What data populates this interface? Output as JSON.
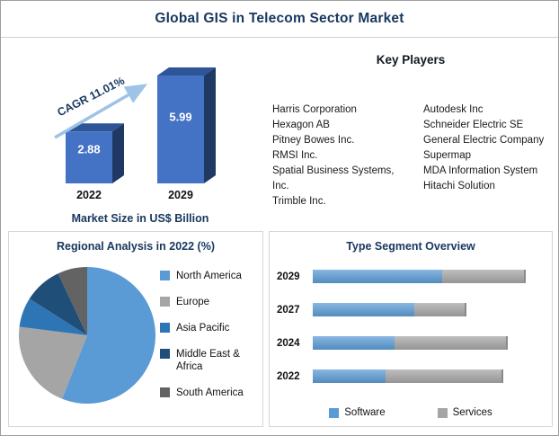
{
  "page": {
    "title": "Global GIS in Telecom Sector Market"
  },
  "key_players": {
    "heading": "Key Players",
    "column1": [
      "Harris Corporation",
      "Hexagon AB",
      "Pitney Bowes Inc.",
      "RMSI Inc.",
      "Spatial Business Systems, Inc.",
      "Trimble Inc."
    ],
    "column2": [
      "Autodesk Inc",
      "Schneider Electric SE",
      "General Electric Company",
      "Supermap",
      "MDA Information System",
      "Hitachi Solution"
    ]
  },
  "chart_data": [
    {
      "type": "bar",
      "title": "Market Size in US$ Billion",
      "categories": [
        "2022",
        "2029"
      ],
      "values": [
        2.88,
        5.99
      ],
      "ylim": [
        0,
        6.5
      ],
      "annotation": "CAGR 11.01%",
      "bar_color": "#4472C4",
      "bar_top_color": "#2E5597",
      "bar_side_color": "#1F3864",
      "arrow_color": "#9DC3E6",
      "value_label_color": "#ffffff",
      "annotation_color": "#17375E"
    },
    {
      "type": "pie",
      "title": "Regional Analysis in 2022 (%)",
      "labels": [
        "North America",
        "Europe",
        "Asia Pacific",
        "Middle East & Africa",
        "South America"
      ],
      "values": [
        56,
        21,
        7,
        9,
        7
      ],
      "colors": [
        "#5B9BD5",
        "#A5A5A5",
        "#2E75B6",
        "#1F4E79",
        "#636363"
      ],
      "legend_position": "right"
    },
    {
      "type": "bar",
      "orientation": "horizontal-stacked",
      "title": "Type Segment Overview",
      "categories": [
        "2029",
        "2027",
        "2024",
        "2022"
      ],
      "unit": "percent-of-chart-width",
      "series": [
        {
          "name": "Software",
          "color": "#5B9BD5",
          "values": [
            57,
            45,
            36,
            32
          ]
        },
        {
          "name": "Services",
          "color": "#A5A5A5",
          "values": [
            37,
            23,
            50,
            52
          ]
        }
      ],
      "legend_position": "bottom"
    }
  ]
}
